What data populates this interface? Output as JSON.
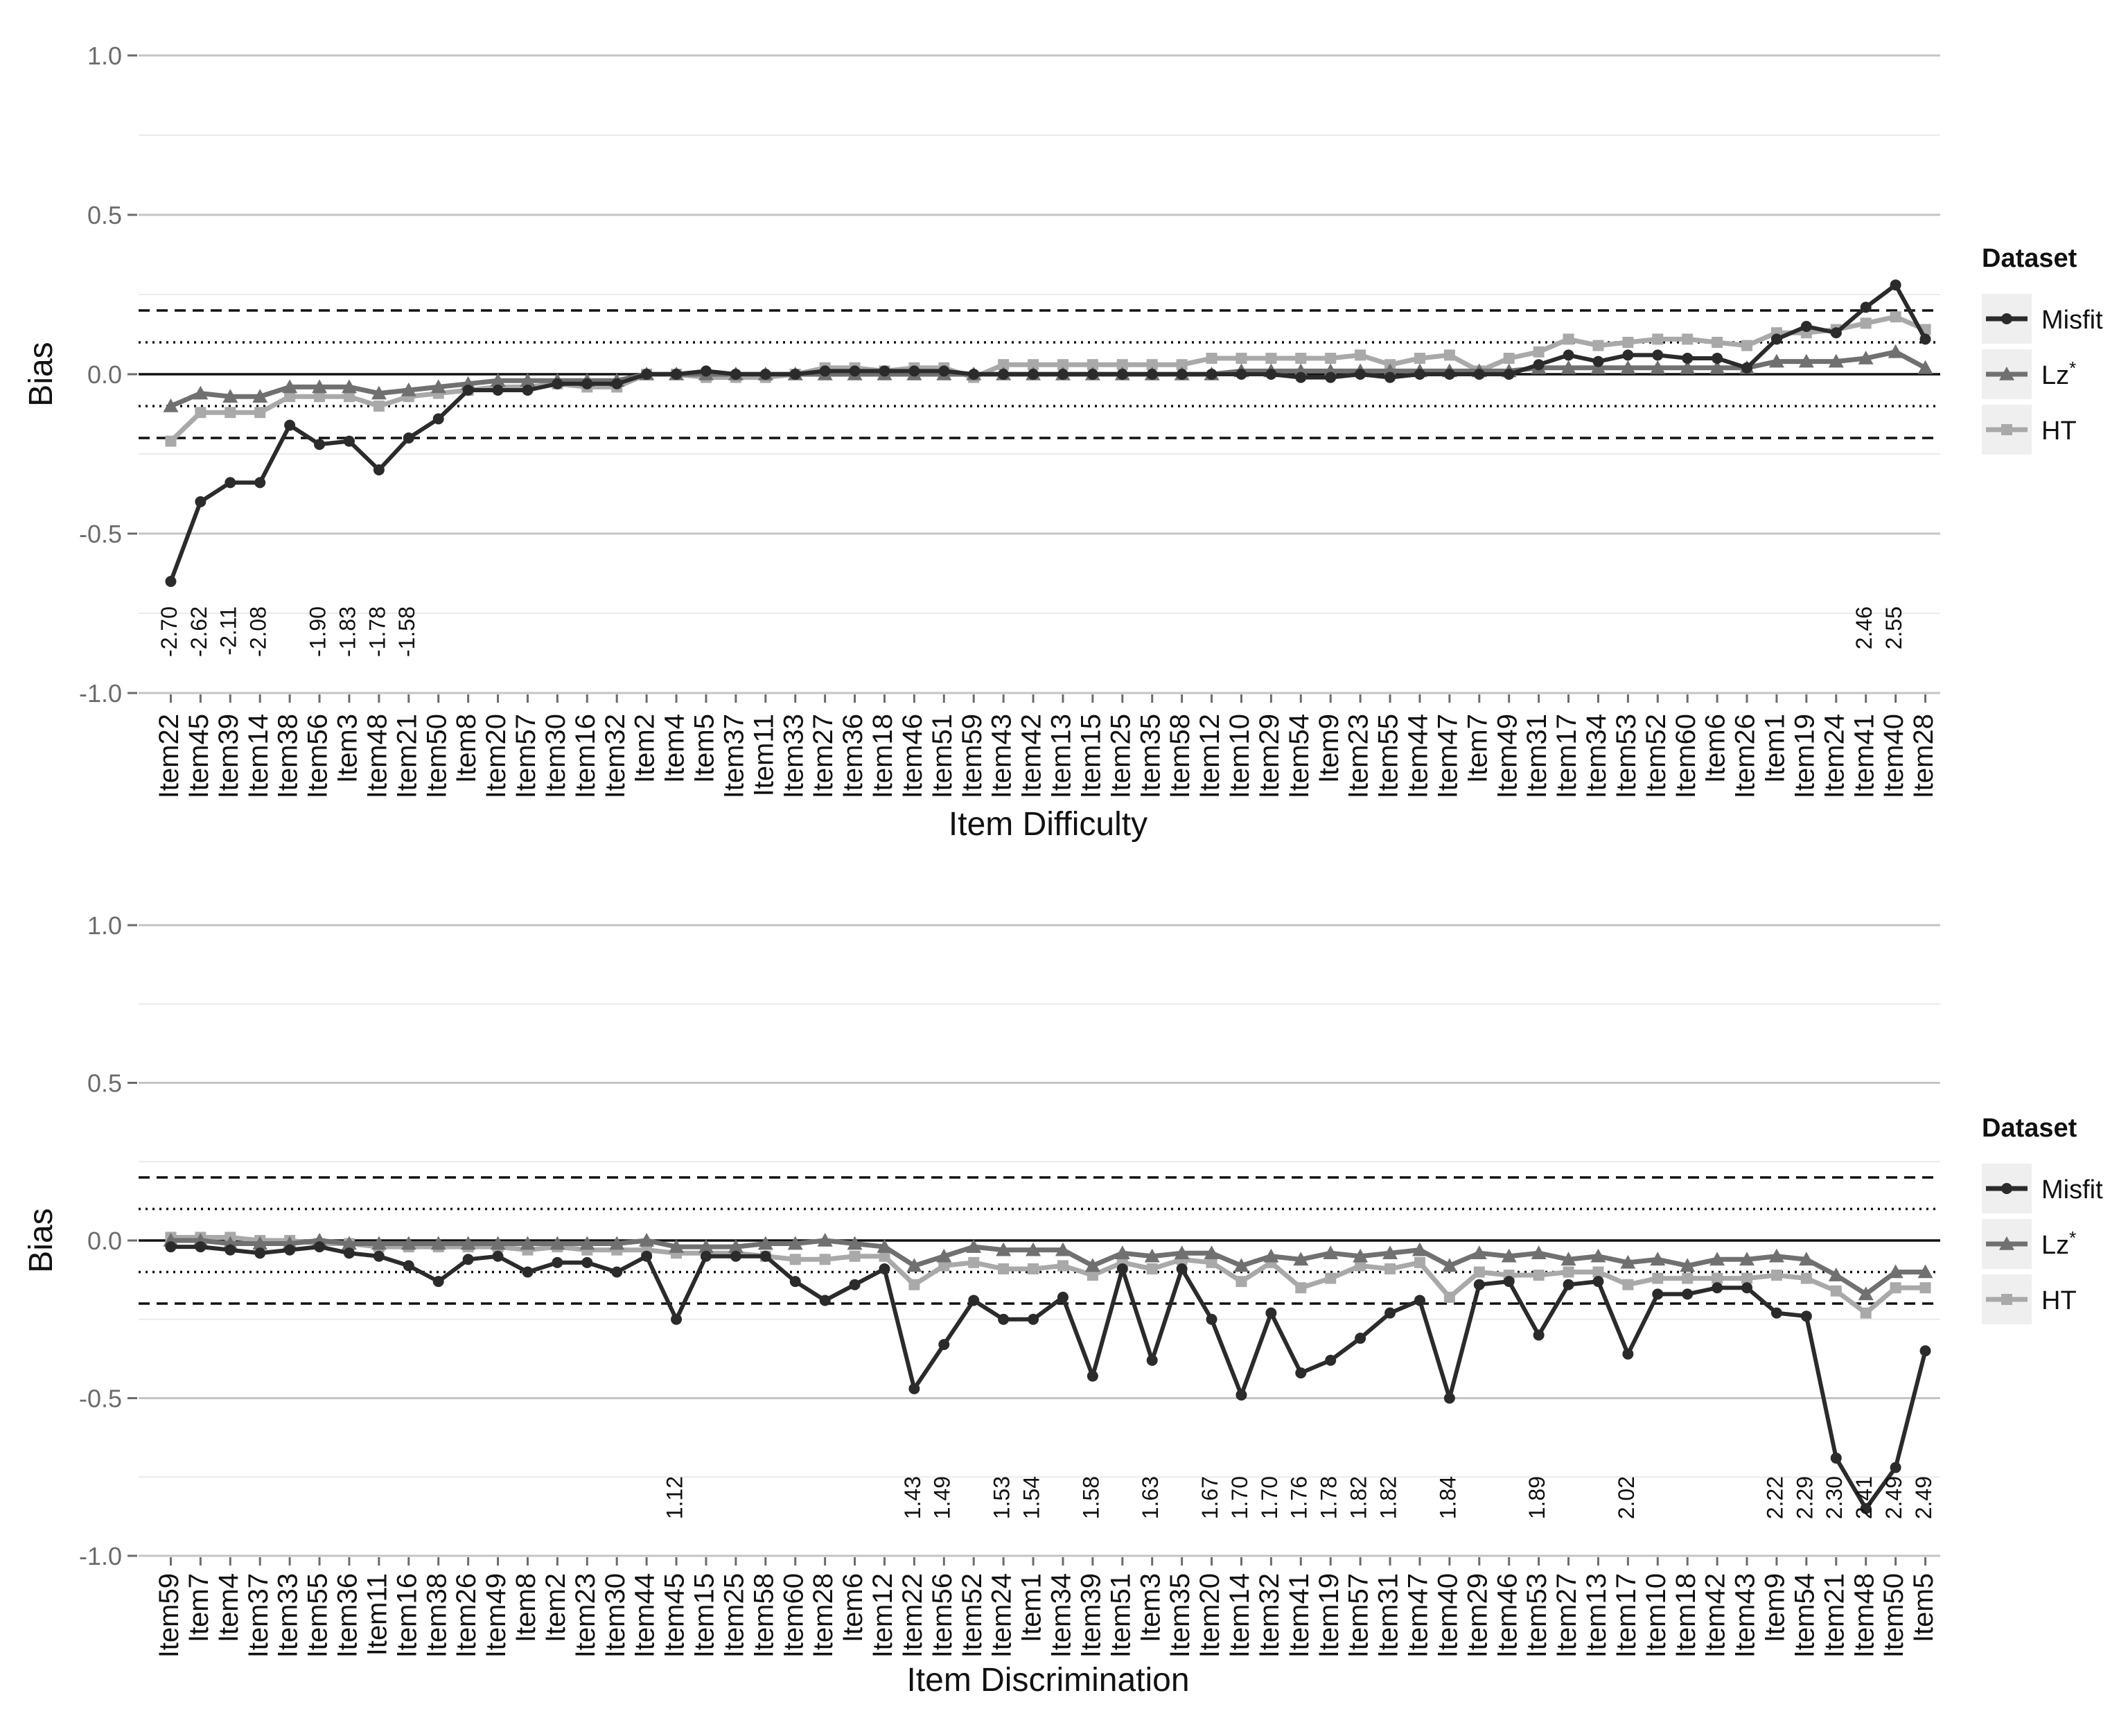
{
  "colors": {
    "misfit": "#2b2b2b",
    "lz": "#707070",
    "ht": "#a9a9a9",
    "grid_major": "#c4c4c4",
    "grid_minor": "#ebebeb",
    "legend_key_bg": "#efefef"
  },
  "legend": {
    "title": "Dataset",
    "entries": [
      {
        "label": "Misfit",
        "sup": "",
        "marker": "circle"
      },
      {
        "label": "Lz",
        "sup": "*",
        "marker": "triangle"
      },
      {
        "label": "HT",
        "sup": "",
        "marker": "square"
      }
    ]
  },
  "chart_data": [
    {
      "type": "line",
      "xlabel": "Item Difficulty",
      "ylabel": "Bias",
      "ylim": [
        -1.0,
        1.0
      ],
      "yticks": [
        "1.0",
        "0.5",
        "0.0",
        "-0.5",
        "-1.0"
      ],
      "grid": true,
      "legend_position": "right",
      "reference_lines": {
        "solid": [
          0.0
        ],
        "dotted": [
          0.1,
          -0.1
        ],
        "dashed": [
          0.2,
          -0.2
        ]
      },
      "categories": [
        "Item22",
        "Item45",
        "Item39",
        "Item14",
        "Item38",
        "Item56",
        "Item3",
        "Item48",
        "Item21",
        "Item50",
        "Item8",
        "Item20",
        "Item57",
        "Item30",
        "Item16",
        "Item32",
        "Item2",
        "Item4",
        "Item5",
        "Item37",
        "Item11",
        "Item33",
        "Item27",
        "Item36",
        "Item18",
        "Item46",
        "Item51",
        "Item59",
        "Item43",
        "Item42",
        "Item13",
        "Item15",
        "Item25",
        "Item35",
        "Item58",
        "Item12",
        "Item10",
        "Item29",
        "Item54",
        "Item9",
        "Item23",
        "Item55",
        "Item44",
        "Item47",
        "Item7",
        "Item49",
        "Item31",
        "Item17",
        "Item34",
        "Item53",
        "Item52",
        "Item60",
        "Item6",
        "Item26",
        "Item1",
        "Item19",
        "Item24",
        "Item41",
        "Item40",
        "Item28"
      ],
      "value_labels": [
        {
          "index": 0,
          "text": "-2.70"
        },
        {
          "index": 1,
          "text": "-2.62"
        },
        {
          "index": 2,
          "text": "-2.11"
        },
        {
          "index": 3,
          "text": "-2.08"
        },
        {
          "index": 5,
          "text": "-1.90"
        },
        {
          "index": 6,
          "text": "-1.83"
        },
        {
          "index": 7,
          "text": "-1.78"
        },
        {
          "index": 8,
          "text": "-1.58"
        },
        {
          "index": 57,
          "text": "2.46"
        },
        {
          "index": 58,
          "text": "2.55"
        }
      ],
      "series": [
        {
          "name": "Misfit",
          "values": [
            -0.65,
            -0.4,
            -0.34,
            -0.34,
            -0.16,
            -0.22,
            -0.21,
            -0.3,
            -0.2,
            -0.14,
            -0.05,
            -0.05,
            -0.05,
            -0.03,
            -0.03,
            -0.03,
            0.0,
            0.0,
            0.01,
            0.0,
            0.0,
            0.0,
            0.01,
            0.01,
            0.01,
            0.01,
            0.01,
            0.0,
            0.0,
            0.0,
            0.0,
            0.0,
            0.0,
            0.0,
            0.0,
            0.0,
            0.0,
            0.0,
            -0.01,
            -0.01,
            0.0,
            -0.01,
            0.0,
            0.0,
            0.0,
            0.0,
            0.03,
            0.06,
            0.04,
            0.06,
            0.06,
            0.05,
            0.05,
            0.02,
            0.11,
            0.15,
            0.13,
            0.21,
            0.28,
            0.11
          ]
        },
        {
          "name": "Lz*",
          "values": [
            -0.1,
            -0.06,
            -0.07,
            -0.07,
            -0.04,
            -0.04,
            -0.04,
            -0.06,
            -0.05,
            -0.04,
            -0.03,
            -0.02,
            -0.02,
            -0.02,
            -0.02,
            -0.02,
            0.0,
            0.0,
            0.0,
            0.0,
            0.0,
            0.0,
            0.0,
            0.0,
            0.0,
            0.0,
            0.0,
            0.0,
            0.0,
            0.0,
            0.0,
            0.0,
            0.0,
            0.0,
            0.0,
            0.0,
            0.01,
            0.01,
            0.01,
            0.01,
            0.01,
            0.01,
            0.01,
            0.01,
            0.01,
            0.01,
            0.02,
            0.02,
            0.02,
            0.02,
            0.02,
            0.02,
            0.02,
            0.02,
            0.04,
            0.04,
            0.04,
            0.05,
            0.07,
            0.02
          ]
        },
        {
          "name": "HT",
          "values": [
            -0.21,
            -0.12,
            -0.12,
            -0.12,
            -0.07,
            -0.07,
            -0.07,
            -0.1,
            -0.07,
            -0.06,
            -0.05,
            -0.04,
            -0.04,
            -0.03,
            -0.04,
            -0.04,
            0.0,
            0.0,
            -0.01,
            -0.01,
            -0.01,
            0.0,
            0.02,
            0.02,
            0.01,
            0.02,
            0.02,
            -0.01,
            0.03,
            0.03,
            0.03,
            0.03,
            0.03,
            0.03,
            0.03,
            0.05,
            0.05,
            0.05,
            0.05,
            0.05,
            0.06,
            0.03,
            0.05,
            0.06,
            0.01,
            0.05,
            0.07,
            0.11,
            0.09,
            0.1,
            0.11,
            0.11,
            0.1,
            0.09,
            0.13,
            0.13,
            0.14,
            0.16,
            0.18,
            0.14
          ]
        }
      ]
    },
    {
      "type": "line",
      "xlabel": "Item Discrimination",
      "ylabel": "Bias",
      "ylim": [
        -1.0,
        1.0
      ],
      "yticks": [
        "1.0",
        "0.5",
        "0.0",
        "-0.5",
        "-1.0"
      ],
      "grid": true,
      "legend_position": "right",
      "reference_lines": {
        "solid": [
          0.0
        ],
        "dotted": [
          0.1,
          -0.1
        ],
        "dashed": [
          0.2,
          -0.2
        ]
      },
      "categories": [
        "Item59",
        "Item7",
        "Item4",
        "Item37",
        "Item33",
        "Item55",
        "Item36",
        "Item11",
        "Item16",
        "Item38",
        "Item26",
        "Item49",
        "Item8",
        "Item2",
        "Item23",
        "Item30",
        "Item44",
        "Item45",
        "Item15",
        "Item25",
        "Item58",
        "Item60",
        "Item28",
        "Item6",
        "Item12",
        "Item22",
        "Item56",
        "Item52",
        "Item24",
        "Item1",
        "Item34",
        "Item39",
        "Item51",
        "Item3",
        "Item35",
        "Item20",
        "Item14",
        "Item32",
        "Item41",
        "Item19",
        "Item57",
        "Item31",
        "Item47",
        "Item40",
        "Item29",
        "Item46",
        "Item53",
        "Item27",
        "Item13",
        "Item17",
        "Item10",
        "Item18",
        "Item42",
        "Item43",
        "Item9",
        "Item54",
        "Item21",
        "Item48",
        "Item50",
        "Item5"
      ],
      "value_labels": [
        {
          "index": 17,
          "text": "1.12"
        },
        {
          "index": 25,
          "text": "1.43"
        },
        {
          "index": 26,
          "text": "1.49"
        },
        {
          "index": 28,
          "text": "1.53"
        },
        {
          "index": 29,
          "text": "1.54"
        },
        {
          "index": 31,
          "text": "1.58"
        },
        {
          "index": 33,
          "text": "1.63"
        },
        {
          "index": 35,
          "text": "1.67"
        },
        {
          "index": 36,
          "text": "1.70"
        },
        {
          "index": 37,
          "text": "1.70"
        },
        {
          "index": 38,
          "text": "1.76"
        },
        {
          "index": 39,
          "text": "1.78"
        },
        {
          "index": 40,
          "text": "1.82"
        },
        {
          "index": 41,
          "text": "1.82"
        },
        {
          "index": 43,
          "text": "1.84"
        },
        {
          "index": 46,
          "text": "1.89"
        },
        {
          "index": 49,
          "text": "2.02"
        },
        {
          "index": 54,
          "text": "2.22"
        },
        {
          "index": 55,
          "text": "2.29"
        },
        {
          "index": 56,
          "text": "2.30"
        },
        {
          "index": 57,
          "text": "2.41"
        },
        {
          "index": 58,
          "text": "2.49"
        },
        {
          "index": 59,
          "text": "2.49"
        }
      ],
      "series": [
        {
          "name": "Misfit",
          "values": [
            -0.02,
            -0.02,
            -0.03,
            -0.04,
            -0.03,
            -0.02,
            -0.04,
            -0.05,
            -0.08,
            -0.13,
            -0.06,
            -0.05,
            -0.1,
            -0.07,
            -0.07,
            -0.1,
            -0.05,
            -0.25,
            -0.05,
            -0.05,
            -0.05,
            -0.13,
            -0.19,
            -0.14,
            -0.09,
            -0.47,
            -0.33,
            -0.19,
            -0.25,
            -0.25,
            -0.18,
            -0.43,
            -0.09,
            -0.38,
            -0.09,
            -0.25,
            -0.49,
            -0.23,
            -0.42,
            -0.38,
            -0.31,
            -0.23,
            -0.19,
            -0.5,
            -0.14,
            -0.13,
            -0.3,
            -0.14,
            -0.13,
            -0.36,
            -0.17,
            -0.17,
            -0.15,
            -0.15,
            -0.23,
            -0.24,
            -0.69,
            -0.85,
            -0.72,
            -0.35
          ]
        },
        {
          "name": "Lz*",
          "values": [
            0.0,
            0.0,
            -0.01,
            -0.01,
            -0.01,
            0.0,
            -0.01,
            -0.01,
            -0.01,
            -0.01,
            -0.01,
            -0.01,
            -0.01,
            -0.01,
            -0.01,
            -0.01,
            0.0,
            -0.02,
            -0.02,
            -0.02,
            -0.01,
            -0.01,
            0.0,
            -0.01,
            -0.02,
            -0.08,
            -0.05,
            -0.02,
            -0.03,
            -0.03,
            -0.03,
            -0.08,
            -0.04,
            -0.05,
            -0.04,
            -0.04,
            -0.08,
            -0.05,
            -0.06,
            -0.04,
            -0.05,
            -0.04,
            -0.03,
            -0.08,
            -0.04,
            -0.05,
            -0.04,
            -0.06,
            -0.05,
            -0.07,
            -0.06,
            -0.08,
            -0.06,
            -0.06,
            -0.05,
            -0.06,
            -0.11,
            -0.17,
            -0.1,
            -0.1
          ]
        },
        {
          "name": "HT",
          "values": [
            0.01,
            0.01,
            0.01,
            0.0,
            0.0,
            -0.01,
            -0.01,
            -0.02,
            -0.02,
            -0.02,
            -0.02,
            -0.02,
            -0.03,
            -0.02,
            -0.03,
            -0.03,
            -0.03,
            -0.04,
            -0.04,
            -0.04,
            -0.05,
            -0.06,
            -0.06,
            -0.05,
            -0.05,
            -0.14,
            -0.08,
            -0.07,
            -0.09,
            -0.09,
            -0.08,
            -0.11,
            -0.07,
            -0.09,
            -0.06,
            -0.07,
            -0.13,
            -0.07,
            -0.15,
            -0.12,
            -0.08,
            -0.09,
            -0.07,
            -0.18,
            -0.1,
            -0.11,
            -0.11,
            -0.1,
            -0.1,
            -0.14,
            -0.12,
            -0.12,
            -0.12,
            -0.12,
            -0.11,
            -0.12,
            -0.16,
            -0.23,
            -0.15,
            -0.15
          ]
        }
      ]
    }
  ]
}
